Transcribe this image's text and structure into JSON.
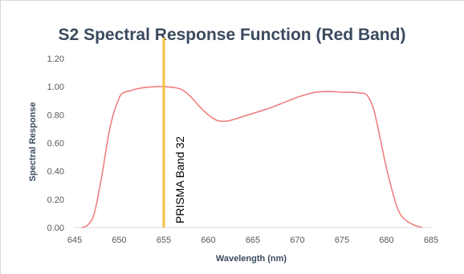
{
  "chart_data": {
    "type": "line",
    "title": "S2 Spectral Response Function (Red Band)",
    "xlabel": "Wavelength (nm)",
    "ylabel": "Spectral Response",
    "xlim": [
      645,
      685
    ],
    "ylim": [
      0,
      1.2
    ],
    "x_ticks": [
      "645",
      "650",
      "655",
      "660",
      "665",
      "670",
      "675",
      "680",
      "685"
    ],
    "y_ticks": [
      "0.00",
      "0.20",
      "0.40",
      "0.60",
      "0.80",
      "1.00",
      "1.20"
    ],
    "grid": false,
    "legend": "none",
    "series": [
      {
        "color": "#f08080",
        "x": [
          645.8,
          646.5,
          647.2,
          648.0,
          649.0,
          650.0,
          650.6,
          651.2,
          652.0,
          653.0,
          654.0,
          655.0,
          656.0,
          657.0,
          658.0,
          659.0,
          660.0,
          661.0,
          662.0,
          663.0,
          664.0,
          665.0,
          666.0,
          667.0,
          668.0,
          669.0,
          670.0,
          671.0,
          672.0,
          673.0,
          674.0,
          675.0,
          676.0,
          677.0,
          677.8,
          678.5,
          679.0,
          680.0,
          681.0,
          681.5,
          682.0,
          683.0,
          684.0
        ],
        "y": [
          0.0,
          0.02,
          0.1,
          0.35,
          0.72,
          0.92,
          0.96,
          0.97,
          0.985,
          0.995,
          1.0,
          1.0,
          0.995,
          0.98,
          0.93,
          0.86,
          0.8,
          0.76,
          0.755,
          0.77,
          0.79,
          0.81,
          0.83,
          0.85,
          0.875,
          0.9,
          0.925,
          0.945,
          0.96,
          0.965,
          0.965,
          0.96,
          0.96,
          0.955,
          0.94,
          0.85,
          0.72,
          0.42,
          0.18,
          0.1,
          0.06,
          0.02,
          0.0
        ]
      }
    ],
    "annotations": [
      {
        "type": "vline",
        "x": 655,
        "color": "#f5c242",
        "label": "PRISMA Band 32"
      }
    ]
  }
}
